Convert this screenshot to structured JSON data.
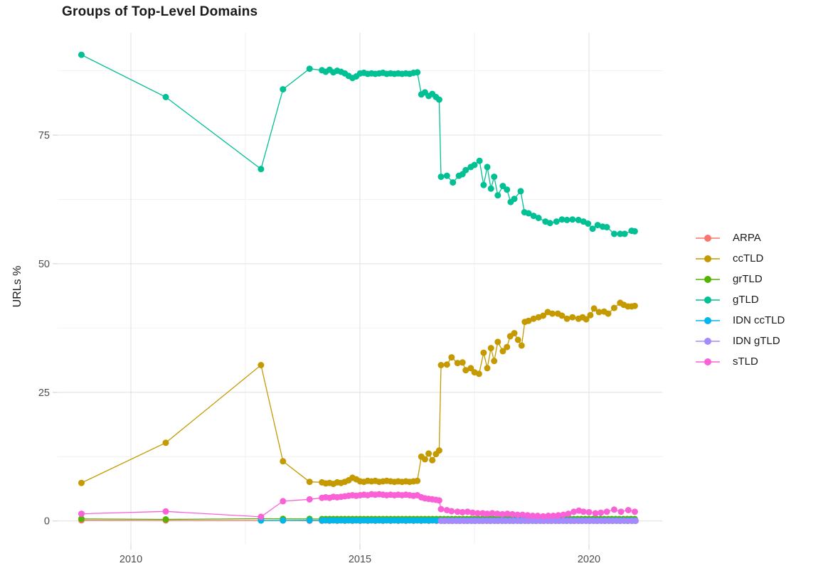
{
  "chart_data": {
    "type": "line",
    "title": "Groups of Top-Level Domains",
    "xlabel": "",
    "ylabel": "URLs %",
    "x_domain": [
      2008.4,
      2021.6
    ],
    "y_domain": [
      -4.6,
      94.9
    ],
    "x_ticks": [
      2010,
      2015,
      2020
    ],
    "x_tick_labels": [
      "2010",
      "2015",
      "2020"
    ],
    "x_minor": [
      2012.5,
      2017.5
    ],
    "y_ticks": [
      0,
      25,
      50,
      75
    ],
    "y_tick_labels": [
      "0",
      "25",
      "50",
      "75"
    ],
    "y_minor": [
      12.5,
      37.5,
      62.5,
      87.5
    ],
    "grid": {
      "major_color": "#e3e3e3",
      "minor_color": "#f1f1f1",
      "tick_color": "#d6d6d6",
      "label_color": "#4d4d4d"
    },
    "legend_position": "right",
    "point_radius": 4.5,
    "line_width": 1.3,
    "series": [
      {
        "name": "ARPA",
        "color": "#F8766D",
        "xy": [
          [
            2008.92,
            0.12
          ],
          [
            2010.76,
            0.1
          ],
          [
            2012.84,
            0.1
          ],
          [
            2013.32,
            0.08
          ],
          [
            2013.9,
            0.05
          ]
        ],
        "runs": [
          {
            "start": 2014.17,
            "step": 0.1667,
            "n": 42,
            "const": 0.03
          }
        ]
      },
      {
        "name": "ccTLD",
        "color": "#C49A00",
        "xy": [
          [
            2008.92,
            7.4
          ],
          [
            2010.76,
            15.2
          ],
          [
            2012.84,
            30.3
          ],
          [
            2013.32,
            11.6
          ],
          [
            2013.9,
            7.6
          ],
          [
            2016.34,
            12.5
          ],
          [
            2016.42,
            12.0
          ],
          [
            2016.5,
            13.1
          ],
          [
            2016.58,
            11.8
          ],
          [
            2016.66,
            13.0
          ],
          [
            2016.73,
            13.7
          ],
          [
            2016.77,
            30.3
          ],
          [
            2016.9,
            30.4
          ],
          [
            2017.0,
            31.8
          ],
          [
            2017.13,
            30.7
          ],
          [
            2017.24,
            30.8
          ],
          [
            2017.31,
            29.3
          ],
          [
            2017.42,
            29.7
          ],
          [
            2017.5,
            28.9
          ],
          [
            2017.6,
            28.6
          ],
          [
            2017.7,
            32.7
          ],
          [
            2017.78,
            29.7
          ],
          [
            2017.86,
            33.6
          ],
          [
            2017.93,
            31.1
          ],
          [
            2018.01,
            34.8
          ],
          [
            2018.12,
            33.0
          ],
          [
            2018.21,
            33.8
          ],
          [
            2018.28,
            35.9
          ],
          [
            2018.37,
            36.5
          ],
          [
            2018.45,
            35.2
          ],
          [
            2018.53,
            34.1
          ],
          [
            2018.6,
            38.7
          ],
          [
            2018.68,
            38.9
          ],
          [
            2018.79,
            39.3
          ],
          [
            2018.9,
            39.6
          ],
          [
            2019.0,
            39.9
          ],
          [
            2019.1,
            40.6
          ],
          [
            2019.2,
            40.3
          ],
          [
            2019.32,
            40.3
          ],
          [
            2019.41,
            39.9
          ],
          [
            2019.52,
            39.3
          ],
          [
            2019.64,
            39.6
          ],
          [
            2019.77,
            39.3
          ],
          [
            2019.86,
            39.6
          ],
          [
            2019.94,
            39.2
          ],
          [
            2020.03,
            40.0
          ],
          [
            2020.11,
            41.3
          ],
          [
            2020.22,
            40.6
          ],
          [
            2020.33,
            40.7
          ],
          [
            2020.42,
            40.3
          ],
          [
            2020.55,
            41.4
          ],
          [
            2020.68,
            42.4
          ],
          [
            2020.76,
            42.0
          ],
          [
            2020.85,
            41.7
          ],
          [
            2020.93,
            41.7
          ],
          [
            2021.0,
            41.8
          ]
        ],
        "runs": [
          {
            "start": 2014.17,
            "step": 0.0833,
            "y": [
              7.5,
              7.3,
              7.4,
              7.2,
              7.5,
              7.4,
              7.6,
              7.9,
              8.4,
              8.1,
              7.7,
              7.6,
              7.8,
              7.7,
              7.8,
              7.6,
              7.7,
              7.8,
              7.7,
              7.6,
              7.7,
              7.6,
              7.7,
              7.6,
              7.7,
              7.8
            ]
          }
        ]
      },
      {
        "name": "grTLD",
        "color": "#53B400",
        "xy": [
          [
            2008.92,
            0.4
          ],
          [
            2010.76,
            0.3
          ],
          [
            2012.84,
            0.45
          ],
          [
            2013.32,
            0.4
          ],
          [
            2013.9,
            0.4
          ]
        ],
        "runs": [
          {
            "start": 2014.17,
            "step": 0.0833,
            "n": 83,
            "const": 0.38
          }
        ]
      },
      {
        "name": "gTLD",
        "color": "#00C094",
        "xy": [
          [
            2008.92,
            90.6
          ],
          [
            2010.76,
            82.4
          ],
          [
            2012.84,
            68.4
          ],
          [
            2013.32,
            83.9
          ],
          [
            2013.9,
            87.9
          ],
          [
            2016.34,
            82.9
          ],
          [
            2016.42,
            83.3
          ],
          [
            2016.5,
            82.6
          ],
          [
            2016.58,
            83.0
          ],
          [
            2016.66,
            82.4
          ],
          [
            2016.73,
            81.9
          ],
          [
            2016.77,
            66.9
          ],
          [
            2016.9,
            67.1
          ],
          [
            2017.03,
            65.8
          ],
          [
            2017.16,
            67.1
          ],
          [
            2017.24,
            67.4
          ],
          [
            2017.31,
            68.2
          ],
          [
            2017.42,
            68.8
          ],
          [
            2017.5,
            69.2
          ],
          [
            2017.61,
            70.0
          ],
          [
            2017.7,
            65.3
          ],
          [
            2017.78,
            68.8
          ],
          [
            2017.86,
            64.6
          ],
          [
            2017.93,
            66.9
          ],
          [
            2018.01,
            63.3
          ],
          [
            2018.12,
            65.1
          ],
          [
            2018.21,
            64.4
          ],
          [
            2018.29,
            62.0
          ],
          [
            2018.37,
            62.6
          ],
          [
            2018.51,
            64.1
          ],
          [
            2018.59,
            60.0
          ],
          [
            2018.68,
            59.8
          ],
          [
            2018.79,
            59.3
          ],
          [
            2018.9,
            58.9
          ],
          [
            2019.05,
            58.2
          ],
          [
            2019.15,
            57.9
          ],
          [
            2019.29,
            58.2
          ],
          [
            2019.41,
            58.6
          ],
          [
            2019.52,
            58.5
          ],
          [
            2019.64,
            58.6
          ],
          [
            2019.77,
            58.5
          ],
          [
            2019.88,
            58.2
          ],
          [
            2019.98,
            57.8
          ],
          [
            2020.08,
            56.8
          ],
          [
            2020.19,
            57.5
          ],
          [
            2020.3,
            57.2
          ],
          [
            2020.39,
            57.1
          ],
          [
            2020.55,
            55.8
          ],
          [
            2020.68,
            55.8
          ],
          [
            2020.78,
            55.8
          ],
          [
            2020.93,
            56.4
          ],
          [
            2021.0,
            56.3
          ]
        ],
        "runs": [
          {
            "start": 2014.17,
            "step": 0.0833,
            "y": [
              87.6,
              87.3,
              87.7,
              87.2,
              87.5,
              87.3,
              87.0,
              86.5,
              86.1,
              86.4,
              87.0,
              87.1,
              86.9,
              87.0,
              86.9,
              87.0,
              87.1,
              86.9,
              87.0,
              86.9,
              87.0,
              86.9,
              87.0,
              86.9,
              87.1,
              87.2
            ]
          }
        ]
      },
      {
        "name": "IDN ccTLD",
        "color": "#00B6EB",
        "xy": [
          [
            2012.84,
            0.08
          ],
          [
            2013.32,
            0.1
          ],
          [
            2013.9,
            0.12
          ]
        ],
        "runs": [
          {
            "start": 2014.17,
            "step": 0.0833,
            "n": 83,
            "const": 0.1
          }
        ]
      },
      {
        "name": "IDN gTLD",
        "color": "#A58AFF",
        "xy": [],
        "runs": [
          {
            "start": 2016.77,
            "step": 0.0833,
            "n": 52,
            "const": 0.02
          }
        ]
      },
      {
        "name": "sTLD",
        "color": "#FB61D7",
        "xy": [
          [
            2008.92,
            1.4
          ],
          [
            2010.76,
            1.85
          ],
          [
            2012.84,
            0.8
          ],
          [
            2013.32,
            3.85
          ],
          [
            2013.9,
            4.2
          ],
          [
            2016.34,
            4.6
          ],
          [
            2016.42,
            4.4
          ],
          [
            2016.5,
            4.3
          ],
          [
            2016.58,
            4.2
          ],
          [
            2016.66,
            4.1
          ],
          [
            2016.73,
            4.0
          ],
          [
            2016.77,
            2.3
          ],
          [
            2016.9,
            2.1
          ],
          [
            2017.0,
            1.9
          ],
          [
            2017.13,
            1.8
          ],
          [
            2017.24,
            1.7
          ],
          [
            2017.35,
            1.8
          ],
          [
            2017.46,
            1.6
          ],
          [
            2017.57,
            1.5
          ],
          [
            2017.68,
            1.5
          ],
          [
            2017.78,
            1.4
          ],
          [
            2017.89,
            1.5
          ],
          [
            2018.0,
            1.4
          ],
          [
            2018.11,
            1.3
          ],
          [
            2018.22,
            1.4
          ],
          [
            2018.33,
            1.3
          ],
          [
            2018.44,
            1.2
          ],
          [
            2018.55,
            1.2
          ],
          [
            2018.66,
            1.1
          ],
          [
            2018.77,
            1.0
          ],
          [
            2018.88,
            1.0
          ],
          [
            2019.0,
            0.9
          ],
          [
            2019.11,
            1.0
          ],
          [
            2019.22,
            1.0
          ],
          [
            2019.33,
            1.1
          ],
          [
            2019.44,
            1.2
          ],
          [
            2019.55,
            1.4
          ],
          [
            2019.67,
            1.8
          ],
          [
            2019.78,
            2.0
          ],
          [
            2019.88,
            1.8
          ],
          [
            2020.0,
            1.7
          ],
          [
            2020.14,
            1.5
          ],
          [
            2020.26,
            1.6
          ],
          [
            2020.39,
            1.8
          ],
          [
            2020.55,
            2.2
          ],
          [
            2020.7,
            1.8
          ],
          [
            2020.86,
            2.1
          ],
          [
            2021.0,
            1.8
          ]
        ],
        "runs": [
          {
            "start": 2014.17,
            "step": 0.0833,
            "y": [
              4.5,
              4.6,
              4.5,
              4.7,
              4.6,
              4.7,
              4.8,
              4.9,
              5.0,
              4.9,
              5.0,
              5.1,
              5.0,
              5.2,
              5.1,
              5.2,
              5.1,
              5.0,
              5.1,
              5.0,
              5.1,
              5.0,
              5.1,
              5.0,
              4.9,
              5.0
            ]
          }
        ]
      }
    ]
  }
}
